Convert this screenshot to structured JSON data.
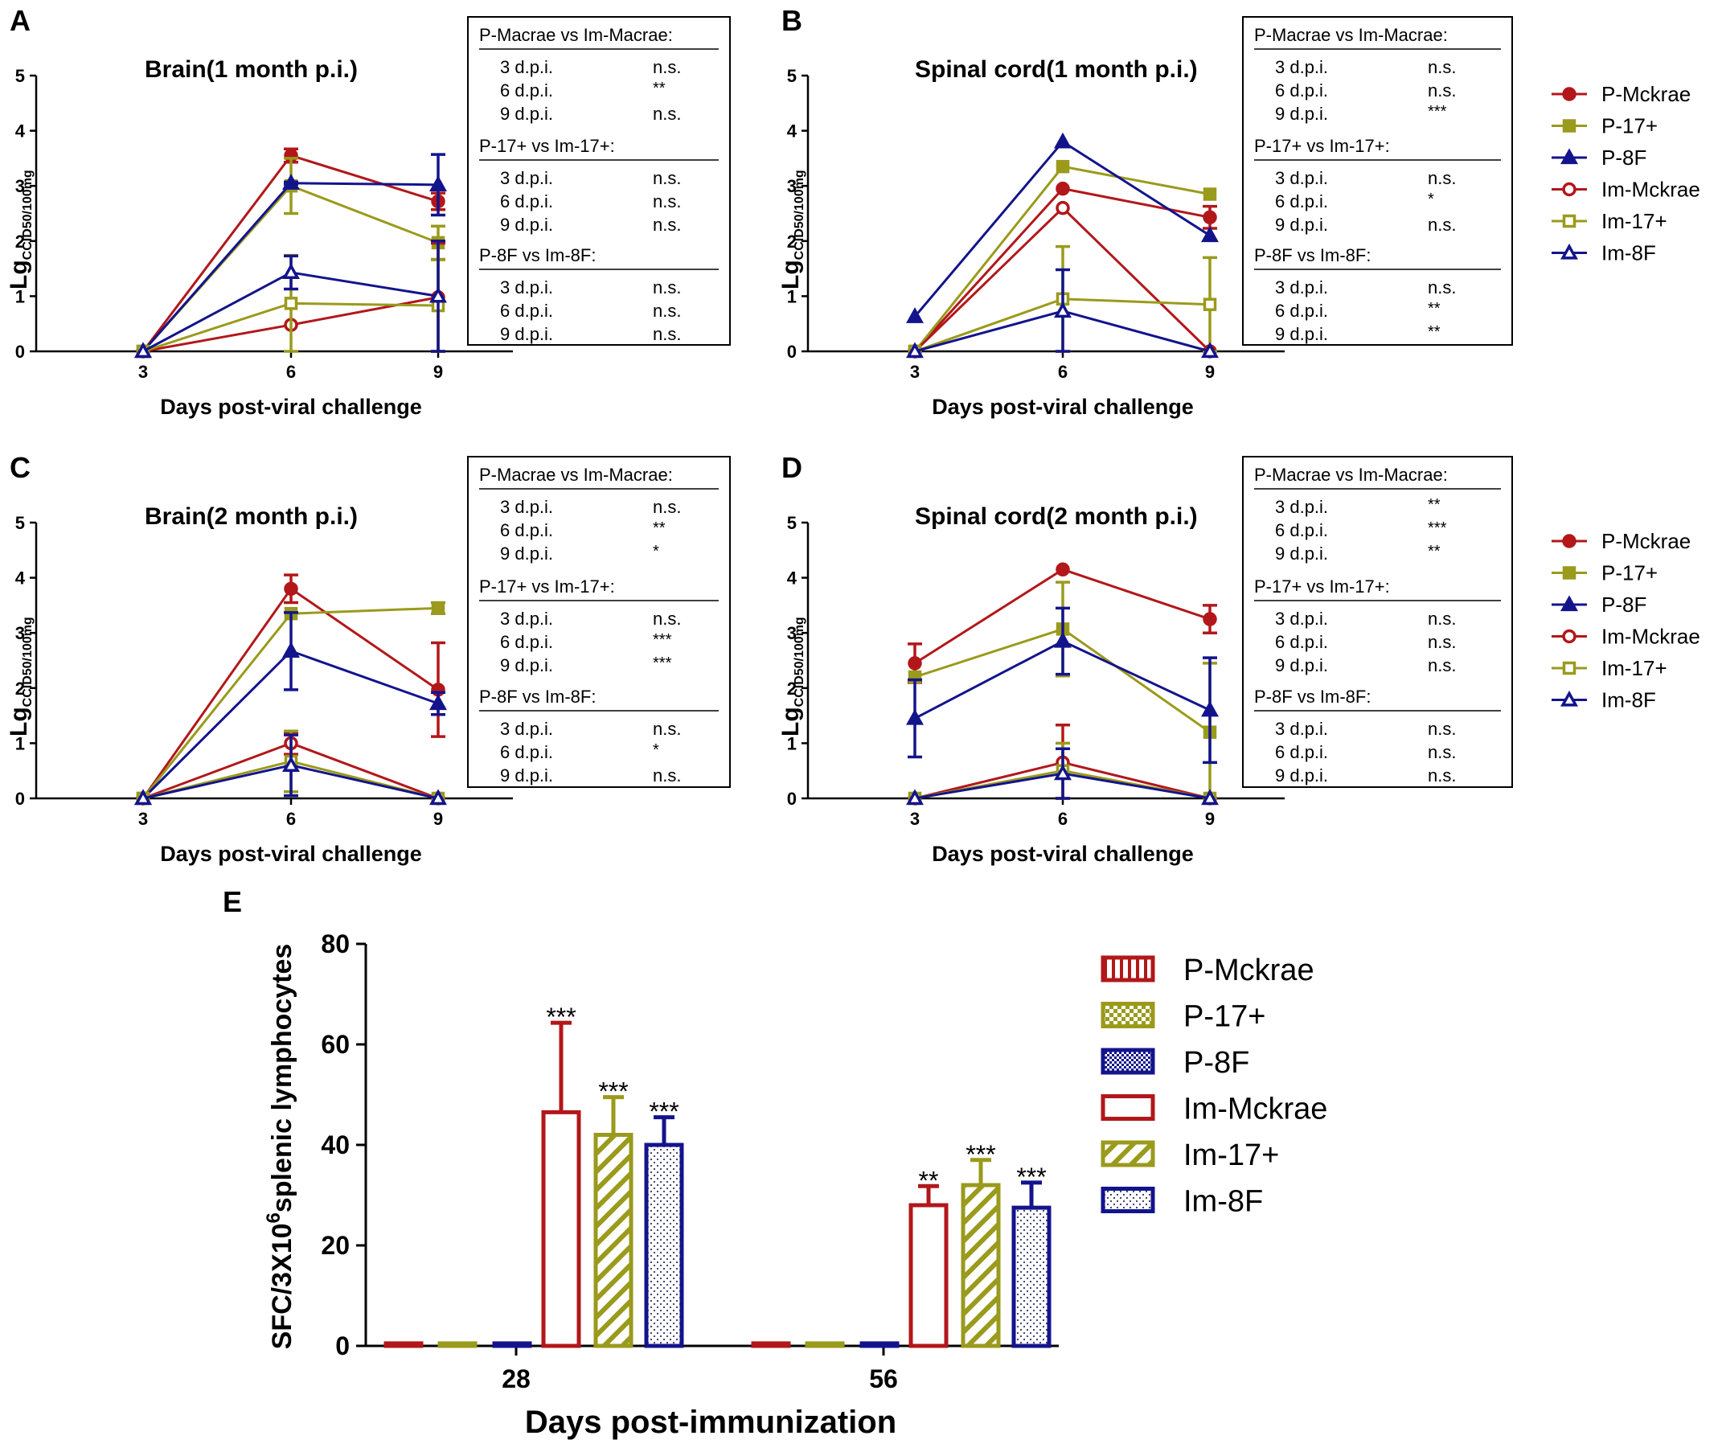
{
  "colors": {
    "mckrae": "#b2171a",
    "s17": "#9a9a1c",
    "s8f": "#13148c",
    "black": "#000000"
  },
  "series_legend": [
    {
      "key": "P-Mckrae",
      "label": "P-Mckrae",
      "color": "#b2171a",
      "marker": "circle-filled"
    },
    {
      "key": "P-17+",
      "label": "P-17+",
      "color": "#9a9a1c",
      "marker": "square-filled"
    },
    {
      "key": "P-8F",
      "label": "P-8F",
      "color": "#13148c",
      "marker": "triangle-filled"
    },
    {
      "key": "Im-Mckrae",
      "label": "Im-Mckrae",
      "color": "#b2171a",
      "marker": "circle-open"
    },
    {
      "key": "Im-17+",
      "label": "Im-17+",
      "color": "#9a9a1c",
      "marker": "square-open"
    },
    {
      "key": "Im-8F",
      "label": "Im-8F",
      "color": "#13148c",
      "marker": "triangle-open"
    }
  ],
  "chart_data": [
    {
      "id": "A",
      "type": "line",
      "panel_letter": "A",
      "title": "Brain(1 month p.i.)",
      "xlabel": "Days post-viral challenge",
      "ylabel_main": "Lg",
      "ylabel_sub": "CCID50/100mg",
      "x": [
        3,
        6,
        9
      ],
      "x_ticks": [
        "3",
        "6",
        "9"
      ],
      "y_ticks": [
        "0",
        "1",
        "2",
        "3",
        "4",
        "5"
      ],
      "ylim": [
        0,
        5
      ],
      "series": [
        {
          "name": "P-Mckrae",
          "values": [
            0,
            3.55,
            2.72
          ],
          "errors": [
            0,
            0.12,
            0.15
          ]
        },
        {
          "name": "P-17+",
          "values": [
            0,
            3.0,
            1.97
          ],
          "errors": [
            0,
            0.5,
            0.3
          ]
        },
        {
          "name": "P-8F",
          "values": [
            0,
            3.05,
            3.02
          ],
          "errors": [
            0,
            0.02,
            0.55
          ]
        },
        {
          "name": "Im-Mckrae",
          "values": [
            0,
            0.48,
            0.98
          ],
          "errors": [
            0,
            0,
            0.98
          ]
        },
        {
          "name": "Im-17+",
          "values": [
            0,
            0.87,
            0.83
          ],
          "errors": [
            0,
            0.87,
            0.83
          ]
        },
        {
          "name": "Im-8F",
          "values": [
            0,
            1.43,
            1.0
          ],
          "errors": [
            0,
            0.3,
            1.0
          ]
        }
      ],
      "stats_title": "",
      "stats": [
        {
          "header": "P-Macrae vs Im-Macrae:",
          "rows": [
            [
              "3 d.p.i.",
              "n.s."
            ],
            [
              "6 d.p.i.",
              "**"
            ],
            [
              "9 d.p.i.",
              "n.s."
            ]
          ]
        },
        {
          "header": "P-17+ vs Im-17+:",
          "rows": [
            [
              "3 d.p.i.",
              "n.s."
            ],
            [
              "6 d.p.i.",
              "n.s."
            ],
            [
              "9 d.p.i.",
              "n.s."
            ]
          ]
        },
        {
          "header": "P-8F vs Im-8F:",
          "rows": [
            [
              "3 d.p.i.",
              "n.s."
            ],
            [
              "6 d.p.i.",
              "n.s."
            ],
            [
              "9 d.p.i.",
              "n.s."
            ]
          ]
        }
      ]
    },
    {
      "id": "B",
      "type": "line",
      "panel_letter": "B",
      "title": "Spinal cord(1 month p.i.)",
      "xlabel": "Days post-viral challenge",
      "ylabel_main": "Lg",
      "ylabel_sub": "CCID50/100mg",
      "x": [
        3,
        6,
        9
      ],
      "x_ticks": [
        "3",
        "6",
        "9"
      ],
      "y_ticks": [
        "0",
        "1",
        "2",
        "3",
        "4",
        "5"
      ],
      "ylim": [
        0,
        5
      ],
      "series": [
        {
          "name": "P-Mckrae",
          "values": [
            0,
            2.95,
            2.43
          ],
          "errors": [
            0,
            0,
            0.2
          ]
        },
        {
          "name": "P-17+",
          "values": [
            0,
            3.35,
            2.85
          ],
          "errors": [
            0,
            0,
            0
          ]
        },
        {
          "name": "P-8F",
          "values": [
            0.63,
            3.8,
            2.1
          ],
          "errors": [
            0,
            0,
            0
          ]
        },
        {
          "name": "Im-Mckrae",
          "values": [
            0,
            2.6,
            0
          ],
          "errors": [
            0,
            0,
            0
          ]
        },
        {
          "name": "Im-17+",
          "values": [
            0,
            0.95,
            0.85
          ],
          "errors": [
            0,
            0.95,
            0.85
          ]
        },
        {
          "name": "Im-8F",
          "values": [
            0,
            0.73,
            0
          ],
          "errors": [
            0,
            0.75,
            0
          ]
        }
      ],
      "stats": [
        {
          "header": "P-Macrae vs Im-Macrae:",
          "rows": [
            [
              "3 d.p.i.",
              "n.s."
            ],
            [
              "6 d.p.i.",
              "n.s."
            ],
            [
              "9 d.p.i.",
              "***"
            ]
          ]
        },
        {
          "header": "P-17+ vs Im-17+:",
          "rows": [
            [
              "3 d.p.i.",
              "n.s."
            ],
            [
              "6 d.p.i.",
              "*"
            ],
            [
              "9 d.p.i.",
              "n.s."
            ]
          ]
        },
        {
          "header": "P-8F vs Im-8F:",
          "rows": [
            [
              "3 d.p.i.",
              "n.s."
            ],
            [
              "6 d.p.i.",
              "**"
            ],
            [
              "9 d.p.i.",
              "**"
            ]
          ]
        }
      ]
    },
    {
      "id": "C",
      "type": "line",
      "panel_letter": "C",
      "title": "Brain(2 month p.i.)",
      "xlabel": "Days post-viral challenge",
      "ylabel_main": "Lg",
      "ylabel_sub": "CCID50/100mg",
      "x": [
        3,
        6,
        9
      ],
      "x_ticks": [
        "3",
        "6",
        "9"
      ],
      "y_ticks": [
        "0",
        "1",
        "2",
        "3",
        "4",
        "5"
      ],
      "ylim": [
        0,
        5
      ],
      "series": [
        {
          "name": "P-Mckrae",
          "values": [
            0,
            3.8,
            1.97
          ],
          "errors": [
            0,
            0.25,
            0.85
          ]
        },
        {
          "name": "P-17+",
          "values": [
            0,
            3.35,
            3.45
          ],
          "errors": [
            0,
            0,
            0.1
          ]
        },
        {
          "name": "P-8F",
          "values": [
            0,
            2.67,
            1.72
          ],
          "errors": [
            0,
            0.7,
            0.2
          ]
        },
        {
          "name": "Im-Mckrae",
          "values": [
            0,
            1.0,
            0
          ],
          "errors": [
            0,
            0.2,
            0
          ]
        },
        {
          "name": "Im-17+",
          "values": [
            0,
            0.67,
            0
          ],
          "errors": [
            0,
            0.55,
            0
          ]
        },
        {
          "name": "Im-8F",
          "values": [
            0,
            0.6,
            0
          ],
          "errors": [
            0,
            0.55,
            0
          ]
        }
      ],
      "stats": [
        {
          "header": "P-Macrae vs Im-Macrae:",
          "rows": [
            [
              "3 d.p.i.",
              "n.s."
            ],
            [
              "6 d.p.i.",
              "**"
            ],
            [
              "9 d.p.i.",
              "*"
            ]
          ]
        },
        {
          "header": "P-17+ vs Im-17+:",
          "rows": [
            [
              "3 d.p.i.",
              "n.s."
            ],
            [
              "6 d.p.i.",
              "***"
            ],
            [
              "9 d.p.i.",
              "***"
            ]
          ]
        },
        {
          "header": "P-8F vs Im-8F:",
          "rows": [
            [
              "3 d.p.i.",
              "n.s."
            ],
            [
              "6 d.p.i.",
              "*"
            ],
            [
              "9 d.p.i.",
              "n.s."
            ]
          ]
        }
      ]
    },
    {
      "id": "D",
      "type": "line",
      "panel_letter": "D",
      "title": "Spinal cord(2 month p.i.)",
      "xlabel": "Days post-viral challenge",
      "ylabel_main": "Lg",
      "ylabel_sub": "CCID50/100mg",
      "x": [
        3,
        6,
        9
      ],
      "x_ticks": [
        "3",
        "6",
        "9"
      ],
      "y_ticks": [
        "0",
        "1",
        "2",
        "3",
        "4",
        "5"
      ],
      "ylim": [
        0,
        5
      ],
      "series": [
        {
          "name": "P-Mckrae",
          "values": [
            2.45,
            4.15,
            3.25
          ],
          "errors": [
            0.35,
            0,
            0.25
          ]
        },
        {
          "name": "P-17+",
          "values": [
            2.2,
            3.07,
            1.2
          ],
          "errors": [
            0,
            0.85,
            1.25
          ]
        },
        {
          "name": "P-8F",
          "values": [
            1.45,
            2.85,
            1.6
          ],
          "errors": [
            0.7,
            0.6,
            0.95
          ]
        },
        {
          "name": "Im-Mckrae",
          "values": [
            0,
            0.65,
            0
          ],
          "errors": [
            0,
            0.68,
            0
          ]
        },
        {
          "name": "Im-17+",
          "values": [
            0,
            0.5,
            0
          ],
          "errors": [
            0,
            0.5,
            0
          ]
        },
        {
          "name": "Im-8F",
          "values": [
            0,
            0.45,
            0
          ],
          "errors": [
            0,
            0.45,
            0
          ]
        }
      ],
      "stats": [
        {
          "header": "P-Macrae vs Im-Macrae:",
          "rows": [
            [
              "3 d.p.i.",
              "**"
            ],
            [
              "6 d.p.i.",
              "***"
            ],
            [
              "9 d.p.i.",
              "**"
            ]
          ]
        },
        {
          "header": "P-17+ vs Im-17+:",
          "rows": [
            [
              "3 d.p.i.",
              "n.s."
            ],
            [
              "6 d.p.i.",
              "n.s."
            ],
            [
              "9 d.p.i.",
              "n.s."
            ]
          ]
        },
        {
          "header": "P-8F vs Im-8F:",
          "rows": [
            [
              "3 d.p.i.",
              "n.s."
            ],
            [
              "6 d.p.i.",
              "n.s."
            ],
            [
              "9 d.p.i.",
              "n.s."
            ]
          ]
        }
      ]
    },
    {
      "id": "E",
      "type": "bar",
      "panel_letter": "E",
      "title": "",
      "xlabel": "Days post-immunization",
      "ylabel": "SFC/3X10^6splenic lymphocytes",
      "ylabel_pre": "SFC/3X10",
      "ylabel_sup": "6",
      "ylabel_post": "splenic lymphocytes",
      "categories": [
        "28",
        "56"
      ],
      "y_ticks": [
        "0",
        "20",
        "40",
        "60",
        "80"
      ],
      "ylim": [
        0,
        80
      ],
      "series": [
        {
          "name": "P-Mckrae",
          "values": [
            0.5,
            0.5
          ],
          "errors": [
            0,
            0
          ],
          "stars": [
            "",
            ""
          ]
        },
        {
          "name": "P-17+",
          "values": [
            0.5,
            0.5
          ],
          "errors": [
            0,
            0
          ],
          "stars": [
            "",
            ""
          ]
        },
        {
          "name": "P-8F",
          "values": [
            0.5,
            0.5
          ],
          "errors": [
            0,
            0
          ],
          "stars": [
            "",
            ""
          ]
        },
        {
          "name": "Im-Mckrae",
          "values": [
            46.5,
            28.0
          ],
          "errors": [
            17.8,
            3.8
          ],
          "stars": [
            "***",
            "**"
          ]
        },
        {
          "name": "Im-17+",
          "values": [
            42.0,
            32.0
          ],
          "errors": [
            7.5,
            5.0
          ],
          "stars": [
            "***",
            "***"
          ]
        },
        {
          "name": "Im-8F",
          "values": [
            40.0,
            27.5
          ],
          "errors": [
            5.5,
            5.0
          ],
          "stars": [
            "***",
            "***"
          ]
        }
      ]
    }
  ]
}
